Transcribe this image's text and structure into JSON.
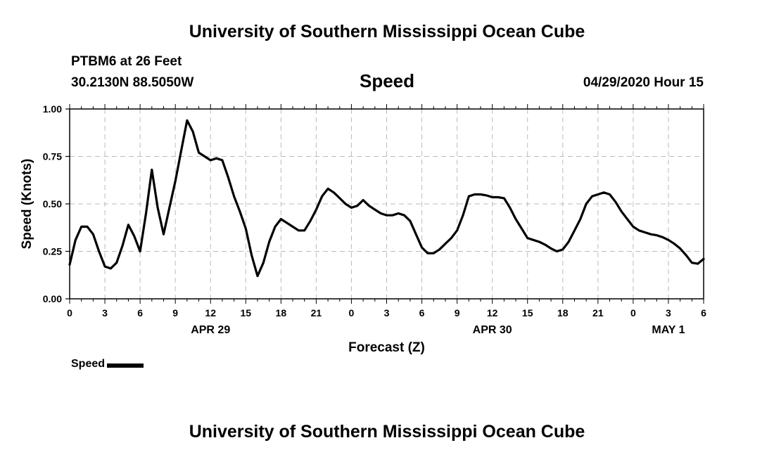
{
  "header": {
    "title": "University of Southern Mississippi Ocean Cube",
    "station": "PTBM6 at 26 Feet",
    "coords": "30.2130N 88.5050W",
    "parameter": "Speed",
    "datetime": "04/29/2020 Hour 15"
  },
  "footer": {
    "title": "University of Southern Mississippi Ocean Cube"
  },
  "chart_data": {
    "type": "line",
    "title": "Speed",
    "xlabel": "Forecast (Z)",
    "ylabel": "Speed (Knots)",
    "ylim": [
      0,
      1.0
    ],
    "xlim": [
      0,
      54
    ],
    "yticks": [
      {
        "v": 0.0,
        "label": "0.00"
      },
      {
        "v": 0.25,
        "label": "0.25"
      },
      {
        "v": 0.5,
        "label": "0.50"
      },
      {
        "v": 0.75,
        "label": "0.75"
      },
      {
        "v": 1.0,
        "label": "1.00"
      }
    ],
    "xticks": [
      {
        "v": 0,
        "label": "0"
      },
      {
        "v": 3,
        "label": "3"
      },
      {
        "v": 6,
        "label": "6"
      },
      {
        "v": 9,
        "label": "9"
      },
      {
        "v": 12,
        "label": "12"
      },
      {
        "v": 15,
        "label": "15"
      },
      {
        "v": 18,
        "label": "18"
      },
      {
        "v": 21,
        "label": "21"
      },
      {
        "v": 24,
        "label": "0"
      },
      {
        "v": 27,
        "label": "3"
      },
      {
        "v": 30,
        "label": "6"
      },
      {
        "v": 33,
        "label": "9"
      },
      {
        "v": 36,
        "label": "12"
      },
      {
        "v": 39,
        "label": "15"
      },
      {
        "v": 42,
        "label": "18"
      },
      {
        "v": 45,
        "label": "21"
      },
      {
        "v": 48,
        "label": "0"
      },
      {
        "v": 51,
        "label": "3"
      },
      {
        "v": 54,
        "label": "6"
      }
    ],
    "date_labels": [
      {
        "v": 12,
        "label": "APR 29"
      },
      {
        "v": 36,
        "label": "APR 30"
      },
      {
        "v": 51,
        "label": "MAY 1"
      }
    ],
    "grid": true,
    "legend_position": "bottom-left",
    "series": [
      {
        "name": "Speed",
        "color": "#000000",
        "x": [
          0,
          0.5,
          1,
          1.5,
          2,
          2.5,
          3,
          3.5,
          4,
          4.5,
          5,
          5.5,
          6,
          6.5,
          7,
          7.5,
          8,
          8.5,
          9,
          9.5,
          10,
          10.5,
          11,
          11.5,
          12,
          12.5,
          13,
          13.5,
          14,
          14.5,
          15,
          15.5,
          16,
          16.5,
          17,
          17.5,
          18,
          18.5,
          19,
          19.5,
          20,
          20.5,
          21,
          21.5,
          22,
          22.5,
          23,
          23.5,
          24,
          24.5,
          25,
          25.5,
          26,
          26.5,
          27,
          27.5,
          28,
          28.5,
          29,
          29.5,
          30,
          30.5,
          31,
          31.5,
          32,
          32.5,
          33,
          33.5,
          34,
          34.5,
          35,
          35.5,
          36,
          36.5,
          37,
          37.5,
          38,
          38.5,
          39,
          39.5,
          40,
          40.5,
          41,
          41.5,
          42,
          42.5,
          43,
          43.5,
          44,
          44.5,
          45,
          45.5,
          46,
          46.5,
          47,
          47.5,
          48,
          48.5,
          49,
          49.5,
          50,
          50.5,
          51,
          51.5,
          52,
          52.5,
          53,
          53.5,
          54
        ],
        "values": [
          0.18,
          0.31,
          0.38,
          0.38,
          0.34,
          0.25,
          0.17,
          0.16,
          0.19,
          0.28,
          0.39,
          0.33,
          0.25,
          0.45,
          0.68,
          0.48,
          0.34,
          0.48,
          0.62,
          0.78,
          0.94,
          0.88,
          0.77,
          0.75,
          0.73,
          0.74,
          0.73,
          0.64,
          0.54,
          0.46,
          0.37,
          0.23,
          0.12,
          0.19,
          0.3,
          0.38,
          0.42,
          0.4,
          0.38,
          0.36,
          0.36,
          0.41,
          0.47,
          0.54,
          0.58,
          0.56,
          0.53,
          0.5,
          0.48,
          0.49,
          0.52,
          0.49,
          0.47,
          0.45,
          0.44,
          0.44,
          0.45,
          0.44,
          0.41,
          0.34,
          0.27,
          0.24,
          0.24,
          0.26,
          0.29,
          0.32,
          0.36,
          0.44,
          0.54,
          0.55,
          0.55,
          0.545,
          0.535,
          0.535,
          0.53,
          0.48,
          0.42,
          0.37,
          0.32,
          0.31,
          0.3,
          0.285,
          0.265,
          0.25,
          0.26,
          0.3,
          0.36,
          0.42,
          0.5,
          0.54,
          0.55,
          0.56,
          0.55,
          0.51,
          0.46,
          0.42,
          0.38,
          0.36,
          0.35,
          0.34,
          0.335,
          0.325,
          0.31,
          0.29,
          0.265,
          0.23,
          0.19,
          0.185,
          0.21
        ]
      }
    ]
  }
}
